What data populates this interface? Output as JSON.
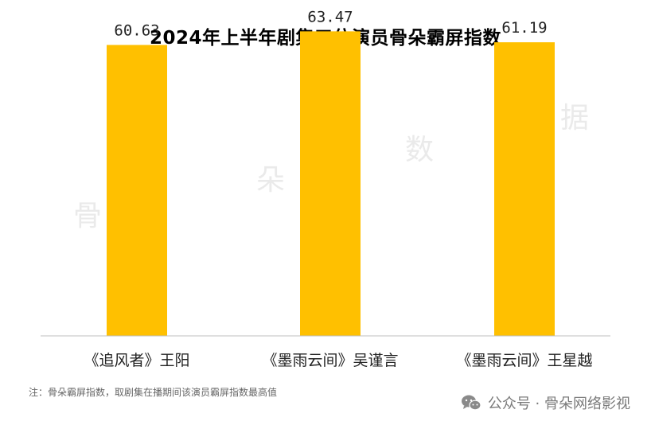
{
  "chart_data": {
    "type": "bar",
    "title": "2024年上半年剧集三位演员骨朵霸屏指数",
    "categories": [
      "《追风者》王阳",
      "《墨雨云间》吴谨言",
      "《墨雨云间》王星越"
    ],
    "values": [
      60.63,
      63.47,
      61.19
    ],
    "value_labels": [
      "60.63",
      "63.47",
      "61.19"
    ],
    "ylim": [
      0,
      70
    ],
    "grid": false,
    "legend": "none",
    "bar_color": "#FFC000",
    "axis_color": "#bfbfbf"
  },
  "watermark": [
    "骨",
    "朵",
    "数",
    "据"
  ],
  "footnote": "注：骨朵霸屏指数，取剧集在播期间该演员霸屏指数最高值",
  "source": {
    "text": "公众号 · 骨朵网络影视",
    "icon": "wechat-icon",
    "icon_color": "#8a8a8a"
  }
}
